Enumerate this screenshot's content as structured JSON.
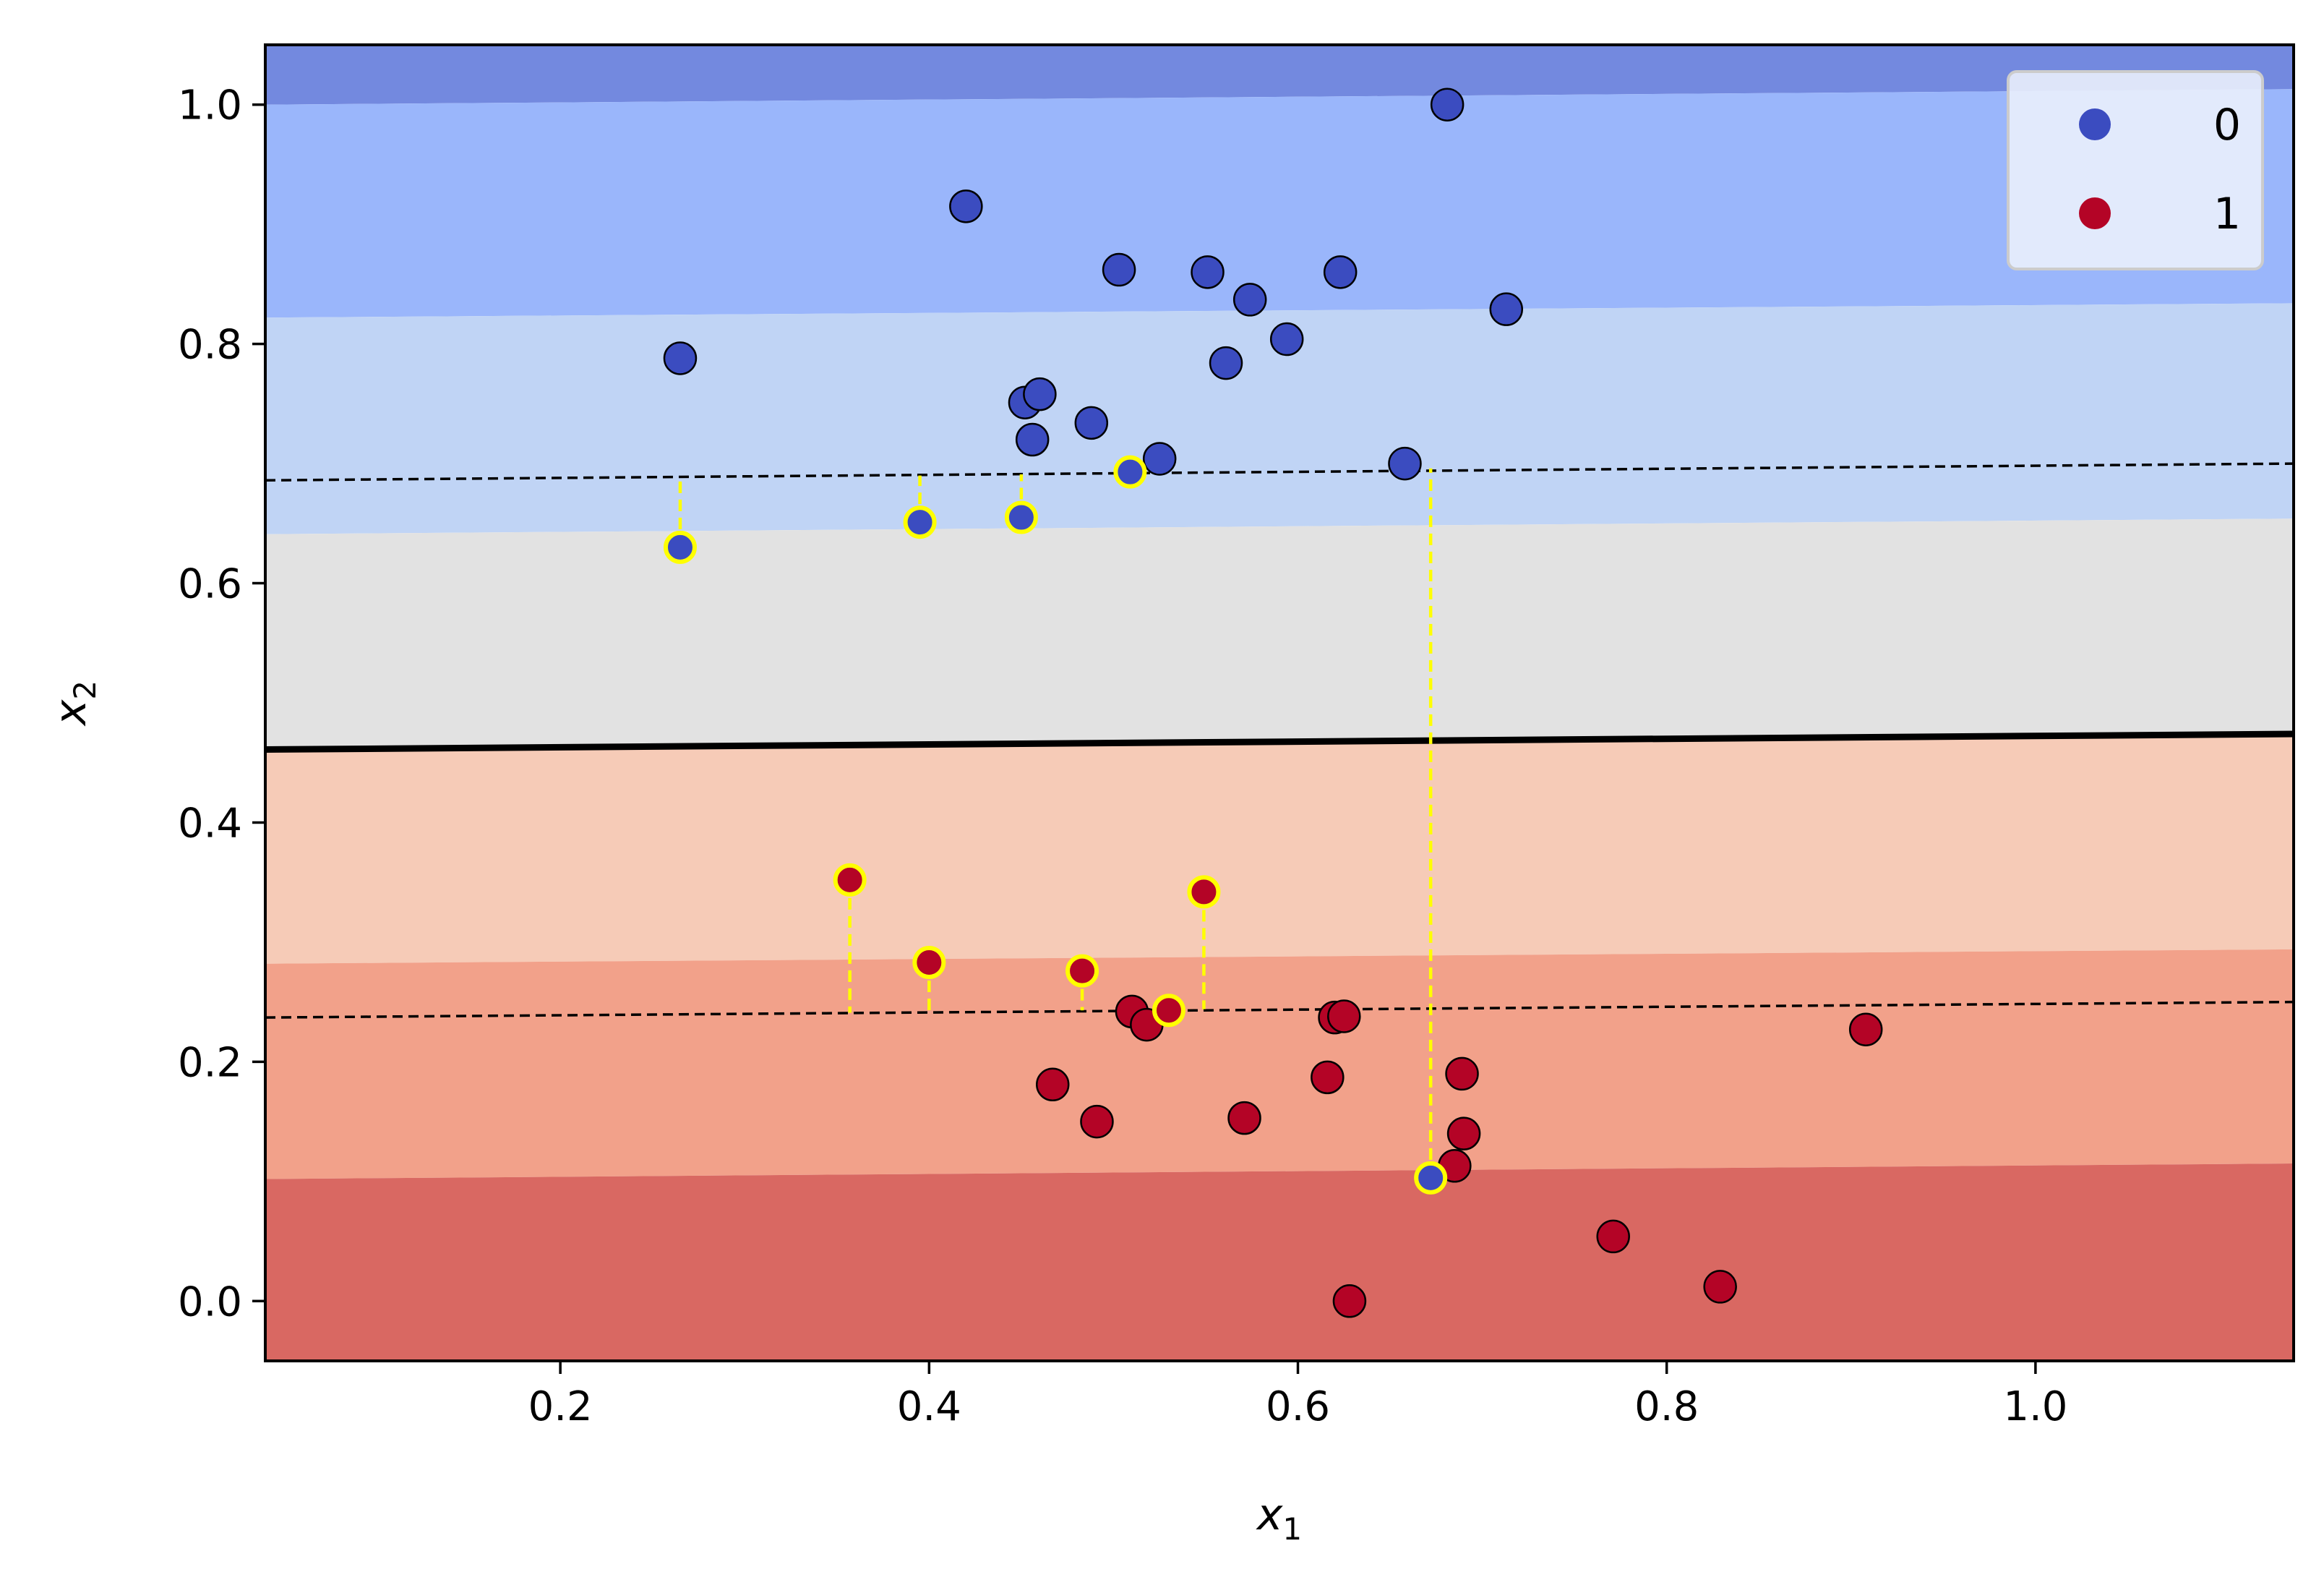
{
  "chart_data": {
    "type": "scatter",
    "title": "",
    "xlabel": "x",
    "xlabel_sub": "1",
    "ylabel": "x",
    "ylabel_sub": "2",
    "xlim": [
      0.04,
      1.14
    ],
    "ylim": [
      -0.05,
      1.05
    ],
    "x_ticks": [
      0.2,
      0.4,
      0.6,
      0.8,
      1.0
    ],
    "x_tick_labels": [
      "0.2",
      "0.4",
      "0.6",
      "0.8",
      "1.0"
    ],
    "y_ticks": [
      0.0,
      0.2,
      0.4,
      0.6,
      0.8,
      1.0
    ],
    "y_tick_labels": [
      "0.0",
      "0.2",
      "0.4",
      "0.6",
      "0.8",
      "1.0"
    ],
    "grid": false,
    "legend_position": "top-right",
    "background_regions": [
      {
        "y0_left": 1.0,
        "y0_right": 1.013,
        "y1_left": 1.05,
        "y1_right": 1.05,
        "color": "#7389df"
      },
      {
        "y0_left": 0.822,
        "y0_right": 0.834,
        "y1_left": 1.0,
        "y1_right": 1.013,
        "color": "#9ab6fb"
      },
      {
        "y0_left": 0.641,
        "y0_right": 0.654,
        "y1_left": 0.822,
        "y1_right": 0.834,
        "color": "#c0d4f5"
      },
      {
        "y0_left": 0.461,
        "y0_right": 0.474,
        "y1_left": 0.641,
        "y1_right": 0.654,
        "color": "#e2e2e2"
      },
      {
        "y0_left": 0.282,
        "y0_right": 0.294,
        "y1_left": 0.461,
        "y1_right": 0.474,
        "color": "#f6cbb7"
      },
      {
        "y0_left": 0.102,
        "y0_right": 0.115,
        "y1_left": 0.282,
        "y1_right": 0.294,
        "color": "#f2a18a"
      },
      {
        "y0_left": -0.05,
        "y0_right": -0.05,
        "y1_left": 0.102,
        "y1_right": 0.115,
        "color": "#d96862"
      }
    ],
    "decision_boundary": {
      "x": [
        0.04,
        1.14
      ],
      "y": [
        0.461,
        0.474
      ],
      "color": "#000000"
    },
    "margins": [
      {
        "x": [
          0.04,
          1.14
        ],
        "y": [
          0.686,
          0.7
        ]
      },
      {
        "x": [
          0.04,
          1.14
        ],
        "y": [
          0.237,
          0.25
        ]
      }
    ],
    "series": [
      {
        "name": "0",
        "color": "#3b4cc0",
        "points": [
          [
            0.265,
            0.788
          ],
          [
            0.42,
            0.915
          ],
          [
            0.452,
            0.751
          ],
          [
            0.46,
            0.758
          ],
          [
            0.456,
            0.72
          ],
          [
            0.488,
            0.734
          ],
          [
            0.503,
            0.862
          ],
          [
            0.525,
            0.704
          ],
          [
            0.551,
            0.86
          ],
          [
            0.561,
            0.784
          ],
          [
            0.574,
            0.837
          ],
          [
            0.594,
            0.804
          ],
          [
            0.623,
            0.86
          ],
          [
            0.658,
            0.7
          ],
          [
            0.681,
            1.0
          ],
          [
            0.713,
            0.829
          ]
        ]
      },
      {
        "name": "1",
        "color": "#b40426",
        "points": [
          [
            0.467,
            0.181
          ],
          [
            0.491,
            0.15
          ],
          [
            0.51,
            0.242
          ],
          [
            0.518,
            0.231
          ],
          [
            0.571,
            0.153
          ],
          [
            0.616,
            0.187
          ],
          [
            0.62,
            0.237
          ],
          [
            0.625,
            0.238
          ],
          [
            0.628,
            0.0
          ],
          [
            0.685,
            0.113
          ],
          [
            0.689,
            0.19
          ],
          [
            0.69,
            0.14
          ],
          [
            0.771,
            0.054
          ],
          [
            0.829,
            0.012
          ],
          [
            0.908,
            0.227
          ]
        ]
      }
    ],
    "support_vectors": [
      {
        "x": 0.265,
        "y": 0.63,
        "class": 0,
        "margin_y": 0.689
      },
      {
        "x": 0.395,
        "y": 0.651,
        "class": 0,
        "margin_y": 0.69
      },
      {
        "x": 0.45,
        "y": 0.655,
        "class": 0,
        "margin_y": 0.691
      },
      {
        "x": 0.509,
        "y": 0.693,
        "class": 0,
        "margin_y": 0.692
      },
      {
        "x": 0.672,
        "y": 0.103,
        "class": 0,
        "margin_y": 0.696
      },
      {
        "x": 0.357,
        "y": 0.352,
        "class": 1,
        "margin_y": 0.241
      },
      {
        "x": 0.4,
        "y": 0.283,
        "class": 1,
        "margin_y": 0.242
      },
      {
        "x": 0.483,
        "y": 0.276,
        "class": 1,
        "margin_y": 0.243
      },
      {
        "x": 0.53,
        "y": 0.243,
        "class": 1,
        "margin_y": 0.244
      },
      {
        "x": 0.549,
        "y": 0.342,
        "class": 1,
        "margin_y": 0.244
      }
    ],
    "support_vector_edge_color": "#ffff00",
    "legend": [
      {
        "label": "0",
        "color": "#3b4cc0"
      },
      {
        "label": "1",
        "color": "#b40426"
      }
    ]
  }
}
